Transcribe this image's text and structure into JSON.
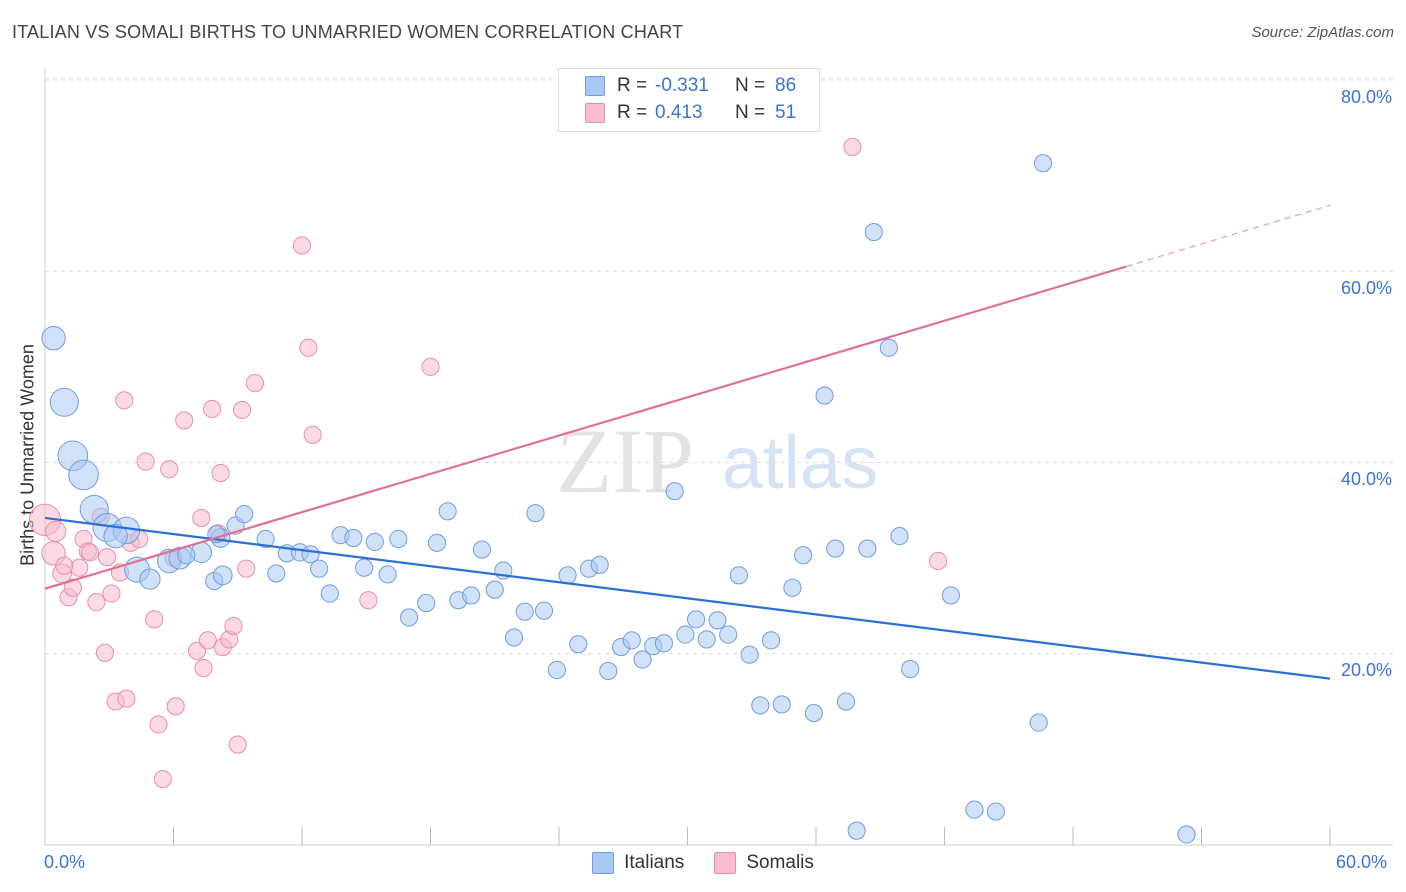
{
  "title": "ITALIAN VS SOMALI BIRTHS TO UNMARRIED WOMEN CORRELATION CHART",
  "source": "Source: ZipAtlas.com",
  "watermark": {
    "zip": "ZIP",
    "atlas": "atlas"
  },
  "legend": {
    "r_label": "R =",
    "n_label": "N =",
    "rows": [
      {
        "name": "Italians",
        "r": "-0.331",
        "n": "86",
        "color": "#a9c8f3"
      },
      {
        "name": "Somalis",
        "r": "0.413",
        "n": "51",
        "color": "#f7bccd"
      }
    ]
  },
  "chart_data": {
    "type": "scatter",
    "title": "ITALIAN VS SOMALI BIRTHS TO UNMARRIED WOMEN CORRELATION CHART",
    "xlabel": "",
    "ylabel": "Births to Unmarried Women",
    "xlim": [
      0,
      60
    ],
    "ylim": [
      0,
      80
    ],
    "x_tick_labels": [
      "0.0%",
      "60.0%"
    ],
    "y_tick_labels": [
      {
        "value": 20,
        "label": "20.0%"
      },
      {
        "value": 40,
        "label": "40.0%"
      },
      {
        "value": 60,
        "label": "60.0%"
      },
      {
        "value": 80,
        "label": "80.0%"
      }
    ],
    "grid": "horizontal dashed",
    "legend_position": "top-center",
    "colors": {
      "italians_fill": "#a9c8f3",
      "italians_stroke": "#6f9fe0",
      "italians_line": "#2b6fd6",
      "somalis_fill": "#f7bccd",
      "somalis_stroke": "#e98fac",
      "somalis_line": "#e0709a"
    },
    "series": [
      {
        "name": "Italians",
        "points": [
          [
            0.4,
            53.0,
            1.5
          ],
          [
            0.9,
            46.3,
            1.8
          ],
          [
            1.3,
            40.7,
            1.9
          ],
          [
            1.8,
            38.7,
            1.9
          ],
          [
            2.3,
            35.1,
            1.8
          ],
          [
            2.9,
            33.2,
            1.8
          ],
          [
            3.8,
            32.9,
            1.7
          ],
          [
            3.3,
            32.3,
            1.5
          ],
          [
            4.3,
            28.8,
            1.6
          ],
          [
            4.9,
            27.8,
            1.3
          ],
          [
            5.8,
            29.7,
            1.5
          ],
          [
            6.3,
            30.0,
            1.4
          ],
          [
            7.3,
            30.6,
            1.3
          ],
          [
            8.2,
            32.1,
            1.2
          ],
          [
            8.9,
            33.4,
            1.1
          ],
          [
            9.3,
            34.6,
            1.1
          ],
          [
            7.9,
            27.6,
            1.1
          ],
          [
            8.3,
            28.2,
            1.2
          ],
          [
            10.3,
            32.0,
            1.1
          ],
          [
            10.8,
            28.4,
            1.1
          ],
          [
            11.3,
            30.5,
            1.1
          ],
          [
            11.9,
            30.6,
            1.1
          ],
          [
            12.4,
            30.4,
            1.1
          ],
          [
            12.8,
            28.9,
            1.1
          ],
          [
            13.3,
            26.3,
            1.1
          ],
          [
            13.8,
            32.4,
            1.1
          ],
          [
            14.4,
            32.1,
            1.1
          ],
          [
            14.9,
            29.0,
            1.1
          ],
          [
            15.4,
            31.7,
            1.1
          ],
          [
            16.0,
            28.3,
            1.1
          ],
          [
            16.5,
            32.0,
            1.1
          ],
          [
            17.0,
            23.8,
            1.1
          ],
          [
            17.8,
            25.3,
            1.1
          ],
          [
            18.3,
            31.6,
            1.1
          ],
          [
            18.8,
            34.9,
            1.1
          ],
          [
            19.3,
            25.6,
            1.1
          ],
          [
            19.9,
            26.1,
            1.1
          ],
          [
            20.4,
            30.9,
            1.1
          ],
          [
            21.0,
            26.7,
            1.1
          ],
          [
            21.4,
            28.7,
            1.1
          ],
          [
            21.9,
            21.7,
            1.1
          ],
          [
            22.4,
            24.4,
            1.1
          ],
          [
            22.9,
            34.7,
            1.1
          ],
          [
            23.3,
            24.5,
            1.1
          ],
          [
            23.9,
            18.3,
            1.1
          ],
          [
            24.4,
            28.2,
            1.1
          ],
          [
            24.9,
            21.0,
            1.1
          ],
          [
            25.4,
            28.9,
            1.1
          ],
          [
            25.9,
            29.3,
            1.1
          ],
          [
            26.3,
            18.2,
            1.1
          ],
          [
            26.9,
            20.7,
            1.1
          ],
          [
            27.4,
            21.4,
            1.1
          ],
          [
            27.9,
            19.4,
            1.1
          ],
          [
            28.4,
            20.8,
            1.1
          ],
          [
            28.9,
            21.1,
            1.1
          ],
          [
            29.4,
            37.0,
            1.1
          ],
          [
            29.9,
            22.0,
            1.1
          ],
          [
            30.4,
            23.6,
            1.1
          ],
          [
            30.9,
            21.5,
            1.1
          ],
          [
            31.4,
            23.5,
            1.1
          ],
          [
            31.9,
            22.0,
            1.1
          ],
          [
            32.4,
            28.2,
            1.1
          ],
          [
            32.9,
            19.9,
            1.1
          ],
          [
            33.4,
            14.6,
            1.1
          ],
          [
            33.9,
            21.4,
            1.1
          ],
          [
            34.4,
            14.7,
            1.1
          ],
          [
            34.9,
            26.9,
            1.1
          ],
          [
            35.4,
            30.3,
            1.1
          ],
          [
            35.9,
            13.8,
            1.1
          ],
          [
            36.4,
            47.0,
            1.1
          ],
          [
            36.9,
            31.0,
            1.1
          ],
          [
            37.4,
            15.0,
            1.1
          ],
          [
            37.9,
            1.5,
            1.1
          ],
          [
            38.4,
            31.0,
            1.1
          ],
          [
            38.7,
            64.1,
            1.1
          ],
          [
            39.4,
            52.0,
            1.1
          ],
          [
            39.9,
            32.3,
            1.1
          ],
          [
            40.4,
            18.4,
            1.1
          ],
          [
            42.3,
            26.1,
            1.1
          ],
          [
            43.4,
            3.7,
            1.1
          ],
          [
            44.4,
            3.5,
            1.1
          ],
          [
            46.4,
            12.8,
            1.1
          ],
          [
            46.6,
            71.3,
            1.1
          ],
          [
            53.3,
            1.1,
            1.1
          ],
          [
            8.0,
            32.5,
            1.1
          ],
          [
            6.6,
            30.3,
            1.1
          ]
        ]
      },
      {
        "name": "Somalis",
        "points": [
          [
            0.0,
            34.0,
            2.0
          ],
          [
            0.4,
            30.5,
            1.5
          ],
          [
            0.5,
            32.8,
            1.3
          ],
          [
            0.8,
            28.4,
            1.2
          ],
          [
            1.1,
            25.9,
            1.1
          ],
          [
            1.3,
            26.9,
            1.1
          ],
          [
            1.6,
            29.0,
            1.1
          ],
          [
            1.8,
            32.0,
            1.1
          ],
          [
            2.0,
            30.7,
            1.1
          ],
          [
            2.4,
            25.4,
            1.1
          ],
          [
            2.6,
            34.3,
            1.1
          ],
          [
            2.8,
            20.1,
            1.1
          ],
          [
            2.9,
            30.1,
            1.1
          ],
          [
            3.1,
            26.3,
            1.1
          ],
          [
            3.3,
            15.0,
            1.1
          ],
          [
            3.5,
            28.5,
            1.1
          ],
          [
            3.8,
            15.3,
            1.1
          ],
          [
            3.7,
            46.5,
            1.1
          ],
          [
            4.0,
            31.6,
            1.1
          ],
          [
            4.4,
            32.0,
            1.1
          ],
          [
            4.7,
            40.1,
            1.1
          ],
          [
            5.1,
            23.6,
            1.1
          ],
          [
            5.3,
            12.6,
            1.1
          ],
          [
            5.5,
            6.9,
            1.1
          ],
          [
            5.8,
            39.3,
            1.1
          ],
          [
            6.0,
            30.0,
            1.1
          ],
          [
            6.1,
            14.5,
            1.1
          ],
          [
            6.5,
            44.4,
            1.1
          ],
          [
            7.1,
            20.3,
            1.1
          ],
          [
            7.3,
            34.2,
            1.1
          ],
          [
            7.4,
            18.5,
            1.1
          ],
          [
            7.6,
            21.4,
            1.1
          ],
          [
            7.8,
            45.6,
            1.1
          ],
          [
            8.1,
            32.6,
            1.1
          ],
          [
            8.2,
            38.9,
            1.1
          ],
          [
            8.3,
            20.7,
            1.1
          ],
          [
            8.6,
            21.5,
            1.1
          ],
          [
            8.8,
            22.9,
            1.1
          ],
          [
            9.0,
            10.5,
            1.1
          ],
          [
            9.2,
            45.5,
            1.1
          ],
          [
            9.4,
            28.9,
            1.1
          ],
          [
            9.8,
            48.3,
            1.1
          ],
          [
            12.0,
            62.7,
            1.1
          ],
          [
            12.3,
            52.0,
            1.1
          ],
          [
            12.5,
            42.9,
            1.1
          ],
          [
            15.1,
            25.6,
            1.1
          ],
          [
            18.0,
            50.0,
            1.1
          ],
          [
            37.7,
            73.0,
            1.1
          ],
          [
            41.7,
            29.7,
            1.1
          ],
          [
            0.9,
            29.2,
            1.1
          ],
          [
            2.1,
            30.6,
            1.1
          ]
        ]
      }
    ],
    "trend_lines": [
      {
        "name": "Italians",
        "x": [
          0,
          60
        ],
        "y": [
          34.2,
          17.4
        ]
      },
      {
        "name": "Somalis",
        "x": [
          0,
          50.5
        ],
        "y": [
          26.8,
          60.5
        ],
        "dashed_to": [
          60,
          66.9
        ]
      }
    ]
  }
}
